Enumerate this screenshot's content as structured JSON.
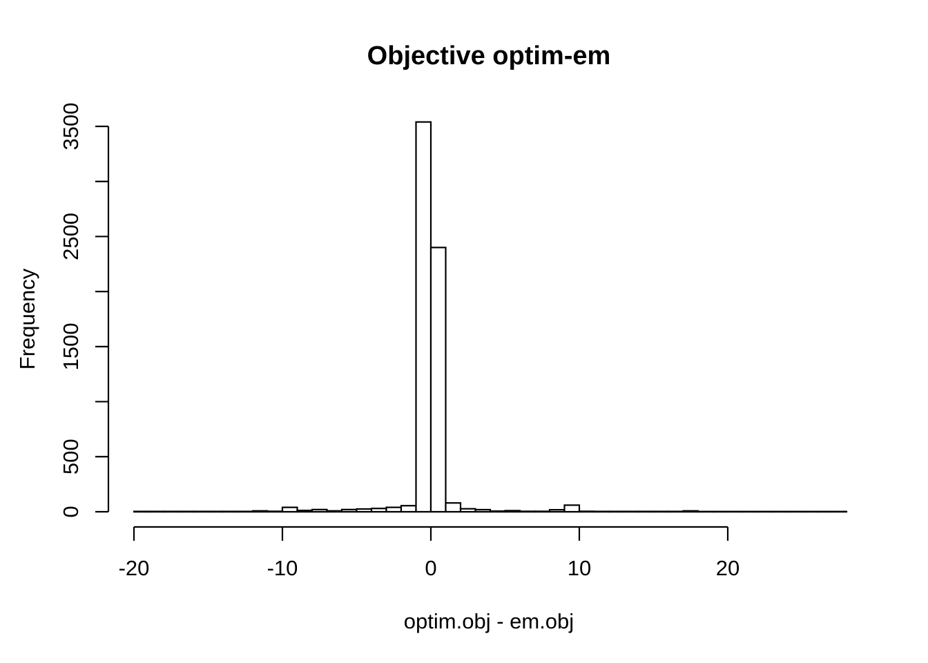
{
  "window": {
    "background_color": "#ffffff"
  },
  "chart_data": {
    "type": "bar",
    "subtype": "histogram",
    "title": "Objective optim-em",
    "xlabel": "optim.obj - em.obj",
    "ylabel": "Frequency",
    "xlim": [
      -20,
      28
    ],
    "ylim": [
      0,
      3500
    ],
    "grid": "off",
    "legend": "none",
    "bin_width": 1,
    "bin_start": -20,
    "bins": {
      "starts": [
        -20,
        -19,
        -18,
        -17,
        -16,
        -15,
        -14,
        -13,
        -12,
        -11,
        -10,
        -9,
        -8,
        -7,
        -6,
        -5,
        -4,
        -3,
        -2,
        -1,
        0,
        1,
        2,
        3,
        4,
        5,
        6,
        7,
        8,
        9,
        10,
        11,
        12,
        13,
        14,
        15,
        16,
        17,
        18,
        19,
        20,
        21,
        22,
        23,
        24,
        25,
        26,
        27
      ],
      "counts": [
        3,
        3,
        3,
        3,
        3,
        3,
        3,
        3,
        8,
        4,
        40,
        12,
        20,
        8,
        20,
        25,
        30,
        40,
        55,
        3540,
        2400,
        80,
        27,
        19,
        6,
        10,
        4,
        4,
        18,
        60,
        4,
        3,
        3,
        3,
        3,
        3,
        3,
        8,
        2,
        2,
        2,
        2,
        2,
        2,
        2,
        2,
        2,
        2
      ]
    },
    "x_ticks": [
      {
        "value": -20,
        "label": "-20"
      },
      {
        "value": -10,
        "label": "-10"
      },
      {
        "value": 0,
        "label": "0"
      },
      {
        "value": 10,
        "label": "10"
      },
      {
        "value": 20,
        "label": "20"
      }
    ],
    "y_ticks": [
      {
        "value": 0,
        "label": "0"
      },
      {
        "value": 500,
        "label": "500"
      },
      {
        "value": 1000,
        "label": ""
      },
      {
        "value": 1500,
        "label": "1500"
      },
      {
        "value": 2000,
        "label": ""
      },
      {
        "value": 2500,
        "label": "2500"
      },
      {
        "value": 3000,
        "label": ""
      },
      {
        "value": 3500,
        "label": "3500"
      }
    ],
    "colors": {
      "bar_fill": "#ffffff",
      "bar_stroke": "#000000",
      "axis_color": "#000000",
      "text_color": "#000000",
      "background": "#ffffff"
    }
  }
}
